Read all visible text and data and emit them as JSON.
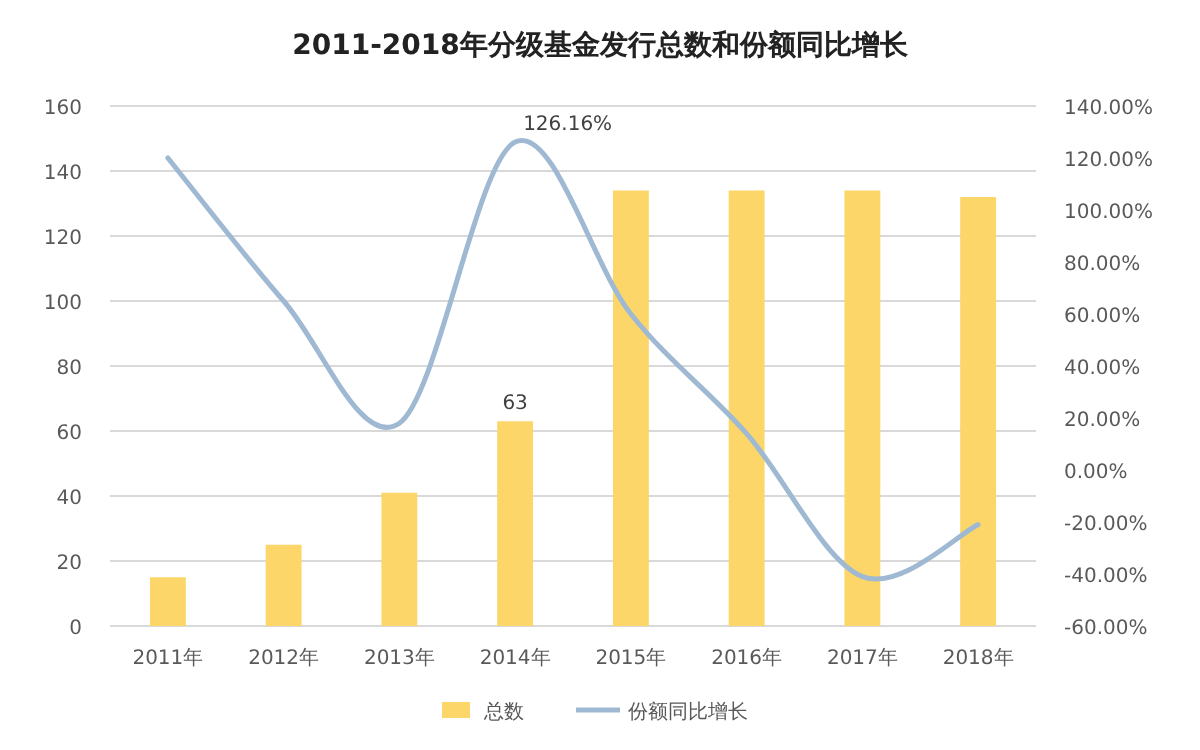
{
  "chart_data": {
    "type": "bar",
    "title": "2011-2018年分级基金发行总数和份额同比增长",
    "categories": [
      "2011年",
      "2012年",
      "2013年",
      "2014年",
      "2015年",
      "2016年",
      "2017年",
      "2018年"
    ],
    "series": [
      {
        "name": "总数",
        "color": "#fcd669",
        "values": [
          15,
          25,
          41,
          63,
          134,
          134,
          134,
          132
        ],
        "value_labels": [
          null,
          null,
          null,
          "63",
          null,
          null,
          null,
          null
        ]
      },
      {
        "name": "份额同比增长",
        "type": "line",
        "axis": "y2",
        "color": "#9fb9d3",
        "values": [
          120,
          65,
          18,
          126.16,
          60,
          14,
          -41,
          -21
        ],
        "value_labels": [
          null,
          null,
          null,
          "126.16%",
          null,
          null,
          null,
          null
        ]
      }
    ],
    "ylim": [
      0,
      160
    ],
    "yticks": [
      0,
      20,
      40,
      60,
      80,
      100,
      120,
      140,
      160
    ],
    "y2lim": [
      -60,
      140
    ],
    "y2ticks": [
      {
        "value": -60,
        "label": "-60.00%"
      },
      {
        "value": -40,
        "label": "-40.00%"
      },
      {
        "value": -20,
        "label": "-20.00%"
      },
      {
        "value": 0,
        "label": "0.00%"
      },
      {
        "value": 20,
        "label": "20.00%"
      },
      {
        "value": 40,
        "label": "40.00%"
      },
      {
        "value": 60,
        "label": "60.00%"
      },
      {
        "value": 80,
        "label": "80.00%"
      },
      {
        "value": 100,
        "label": "100.00%"
      },
      {
        "value": 120,
        "label": "120.00%"
      },
      {
        "value": 140,
        "label": "140.00%"
      }
    ],
    "grid": "y",
    "legend": "bottom",
    "marker": "none"
  }
}
